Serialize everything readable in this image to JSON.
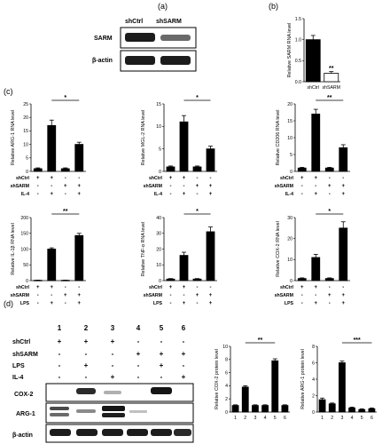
{
  "panels": {
    "a": "(a)",
    "b": "(b)",
    "c": "(c)",
    "d": "(d)"
  },
  "blot_a": {
    "lanes": [
      "shCtrl",
      "shSARM"
    ],
    "rows": [
      "SARM",
      "β-actin"
    ]
  },
  "panel_d": {
    "lanes": [
      "1",
      "2",
      "3",
      "4",
      "5",
      "6"
    ],
    "groups": [
      {
        "name": "shCtrl",
        "signs": [
          "+",
          "+",
          "+",
          "-",
          "-",
          "-"
        ]
      },
      {
        "name": "shSARM",
        "signs": [
          "-",
          "-",
          "-",
          "+",
          "+",
          "+"
        ]
      },
      {
        "name": "LPS",
        "signs": [
          "-",
          "+",
          "-",
          "-",
          "+",
          "-"
        ]
      },
      {
        "name": "IL-4",
        "signs": [
          "-",
          "-",
          "+",
          "-",
          "-",
          "+"
        ]
      }
    ],
    "blot_rows": [
      "COX-2",
      "ARG-1",
      "β-actin"
    ]
  },
  "chart_data": [
    {
      "id": "b",
      "type": "bar",
      "categories": [
        "shCtrl",
        "shSARM"
      ],
      "values": [
        1.0,
        0.2
      ],
      "errors": [
        0.1,
        0.04
      ],
      "fills": [
        "black",
        "white"
      ],
      "ylabel": "Relative SARM RNA level",
      "ylim": [
        0,
        1.5
      ],
      "yticks": [
        "0.0",
        "0.5",
        "1.0",
        "1.5"
      ],
      "sig": {
        "label": "**",
        "bars": [
          1,
          1
        ]
      }
    },
    {
      "id": "c1",
      "type": "bar",
      "categories": [
        "1",
        "2",
        "3",
        "4"
      ],
      "values": [
        1,
        17,
        1,
        10
      ],
      "errors": [
        0.3,
        2,
        0.3,
        0.8
      ],
      "ylabel": "Relative ARG-1 RNA level",
      "ylim": [
        0,
        25
      ],
      "yticks": [
        "0",
        "5",
        "10",
        "15",
        "20",
        "25"
      ],
      "groups": [
        {
          "name": "shCtrl",
          "signs": [
            "+",
            "+",
            "-",
            "-"
          ]
        },
        {
          "name": "shSARM",
          "signs": [
            "-",
            "-",
            "+",
            "+"
          ]
        },
        {
          "name": "IL-4",
          "signs": [
            "-",
            "+",
            "-",
            "+"
          ]
        }
      ],
      "sig": {
        "label": "*",
        "bars": [
          1,
          3
        ]
      }
    },
    {
      "id": "c2",
      "type": "bar",
      "categories": [
        "1",
        "2",
        "3",
        "4"
      ],
      "values": [
        1,
        11,
        1,
        5
      ],
      "errors": [
        0.2,
        1.4,
        0.2,
        0.6
      ],
      "ylabel": "Relative MGL-2 RNA level",
      "ylim": [
        0,
        15
      ],
      "yticks": [
        "0",
        "5",
        "10",
        "15"
      ],
      "groups": [
        {
          "name": "shCtrl",
          "signs": [
            "+",
            "+",
            "-",
            "-"
          ]
        },
        {
          "name": "shSARM",
          "signs": [
            "-",
            "-",
            "+",
            "+"
          ]
        },
        {
          "name": "IL-4",
          "signs": [
            "-",
            "+",
            "-",
            "+"
          ]
        }
      ],
      "sig": {
        "label": "*",
        "bars": [
          1,
          3
        ]
      }
    },
    {
      "id": "c3",
      "type": "bar",
      "categories": [
        "1",
        "2",
        "3",
        "4"
      ],
      "values": [
        1,
        17,
        1,
        7
      ],
      "errors": [
        0.2,
        1.4,
        0.2,
        0.9
      ],
      "ylabel": "Relative CD206 RNA level",
      "ylim": [
        0,
        20
      ],
      "yticks": [
        "0",
        "5",
        "10",
        "15",
        "20"
      ],
      "groups": [
        {
          "name": "shCtrl",
          "signs": [
            "+",
            "+",
            "-",
            "-"
          ]
        },
        {
          "name": "shSARM",
          "signs": [
            "-",
            "-",
            "+",
            "+"
          ]
        },
        {
          "name": "IL-4",
          "signs": [
            "-",
            "+",
            "-",
            "+"
          ]
        }
      ],
      "sig": {
        "label": "**",
        "bars": [
          1,
          3
        ]
      }
    },
    {
      "id": "c4",
      "type": "bar",
      "categories": [
        "1",
        "2",
        "3",
        "4"
      ],
      "values": [
        1,
        100,
        1,
        143
      ],
      "errors": [
        0.5,
        4,
        0.5,
        7
      ],
      "ylabel": "Relative IL-1β RNA level",
      "ylim": [
        0,
        200
      ],
      "yticks": [
        "0",
        "50",
        "100",
        "150",
        "200"
      ],
      "groups": [
        {
          "name": "shCtrl",
          "signs": [
            "+",
            "+",
            "-",
            "-"
          ]
        },
        {
          "name": "shSARM",
          "signs": [
            "-",
            "-",
            "+",
            "+"
          ]
        },
        {
          "name": "LPS",
          "signs": [
            "-",
            "+",
            "-",
            "+"
          ]
        }
      ],
      "sig": {
        "label": "**",
        "bars": [
          1,
          3
        ]
      }
    },
    {
      "id": "c5",
      "type": "bar",
      "categories": [
        "1",
        "2",
        "3",
        "4"
      ],
      "values": [
        1,
        16,
        1,
        31
      ],
      "errors": [
        0.3,
        2,
        0.3,
        3
      ],
      "ylabel": "Relative TNF-α RNA level",
      "ylim": [
        0,
        40
      ],
      "yticks": [
        "0",
        "10",
        "20",
        "30",
        "40"
      ],
      "groups": [
        {
          "name": "shCtrl",
          "signs": [
            "+",
            "+",
            "-",
            "-"
          ]
        },
        {
          "name": "shSARM",
          "signs": [
            "-",
            "-",
            "+",
            "+"
          ]
        },
        {
          "name": "LPS",
          "signs": [
            "-",
            "+",
            "-",
            "+"
          ]
        }
      ],
      "sig": {
        "label": "*",
        "bars": [
          1,
          3
        ]
      }
    },
    {
      "id": "c6",
      "type": "bar",
      "categories": [
        "1",
        "2",
        "3",
        "4"
      ],
      "values": [
        1,
        11,
        1,
        25
      ],
      "errors": [
        0.3,
        1.5,
        0.3,
        3
      ],
      "ylabel": "Relative COX-2 RNA level",
      "ylim": [
        0,
        30
      ],
      "yticks": [
        "0",
        "10",
        "20",
        "30"
      ],
      "groups": [
        {
          "name": "shCtrl",
          "signs": [
            "+",
            "+",
            "-",
            "-"
          ]
        },
        {
          "name": "shSARM",
          "signs": [
            "-",
            "-",
            "+",
            "+"
          ]
        },
        {
          "name": "LPS",
          "signs": [
            "-",
            "+",
            "-",
            "+"
          ]
        }
      ],
      "sig": {
        "label": "*",
        "bars": [
          1,
          3
        ]
      }
    },
    {
      "id": "d1",
      "type": "bar",
      "categories": [
        "1",
        "2",
        "3",
        "4",
        "5",
        "6"
      ],
      "values": [
        1,
        3.8,
        1,
        1,
        7.8,
        1
      ],
      "errors": [
        0.1,
        0.2,
        0.1,
        0.1,
        0.3,
        0.1
      ],
      "ylabel": "Relative COX-2 protein level",
      "ylim": [
        0,
        10
      ],
      "yticks": [
        "0",
        "2",
        "4",
        "6",
        "8",
        "10"
      ],
      "sig": {
        "label": "**",
        "bars": [
          1,
          4
        ]
      }
    },
    {
      "id": "d2",
      "type": "bar",
      "categories": [
        "1",
        "2",
        "3",
        "4",
        "5",
        "6"
      ],
      "values": [
        1.5,
        1,
        6,
        0.5,
        0.3,
        0.4
      ],
      "errors": [
        0.2,
        0.1,
        0.2,
        0.1,
        0.1,
        0.1
      ],
      "ylabel": "Relative ARG-1 protein level",
      "ylim": [
        0,
        8
      ],
      "yticks": [
        "0",
        "2",
        "4",
        "6",
        "8"
      ],
      "sig": {
        "label": "***",
        "bars": [
          2,
          5
        ]
      }
    }
  ]
}
